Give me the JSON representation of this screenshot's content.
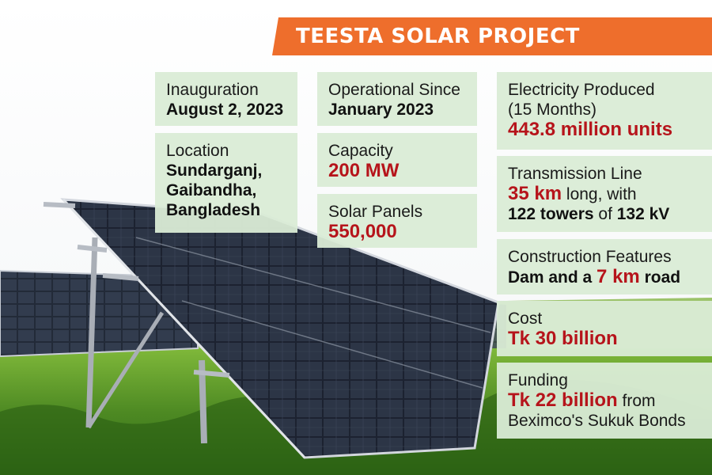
{
  "title": "TEESTA SOLAR PROJECT",
  "cards": {
    "inauguration": {
      "label": "Inauguration",
      "value": "August 2, 2023"
    },
    "location": {
      "label": "Location",
      "lines": [
        "Sundarganj,",
        "Gaibandha,",
        "Bangladesh"
      ]
    },
    "operational": {
      "label": "Operational Since",
      "value": "January 2023"
    },
    "capacity": {
      "label": "Capacity",
      "value": "200 MW"
    },
    "panels": {
      "label": "Solar Panels",
      "value": "550,000"
    },
    "electricity": {
      "label1": "Electricity Produced",
      "label2": "(15 Months)",
      "value": "443.8 million units"
    },
    "transmission": {
      "label": "Transmission Line",
      "v1": "35 km",
      "t1": " long, with",
      "v2": "122 towers",
      "t2": " of ",
      "v3": "132 kV"
    },
    "construction": {
      "label": "Construction Features",
      "p1": "Dam and a ",
      "v": "7 km",
      "p2": " road"
    },
    "cost": {
      "label": "Cost",
      "value": "Tk 30 billion"
    },
    "funding": {
      "label": "Funding",
      "value": "Tk 22 billion",
      "t1": " from",
      "line2": "Beximco's Sukuk Bonds"
    }
  },
  "colors": {
    "accent": "#ee6e2c",
    "highlight": "#b6141b",
    "card": "#daecd6"
  }
}
